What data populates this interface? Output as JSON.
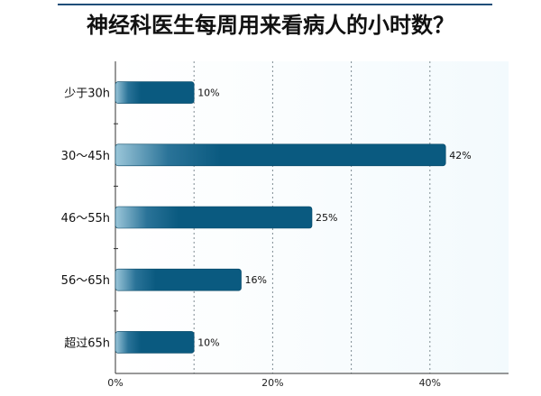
{
  "title": "神经科医生每周用来看病人的小时数？",
  "chart_data": {
    "type": "bar",
    "orientation": "horizontal",
    "title": "神经科医生每周用来看病人的小时数？",
    "categories": [
      "少于30h",
      "30～45h",
      "46～55h",
      "56～65h",
      "超过65h"
    ],
    "values": [
      10,
      42,
      25,
      16,
      10
    ],
    "value_labels": [
      "10%",
      "42%",
      "25%",
      "16%",
      "10%"
    ],
    "x_ticks": [
      0,
      20,
      40
    ],
    "x_tick_labels": [
      "0%",
      "20%",
      "40%"
    ],
    "xlim": [
      0,
      50
    ],
    "grid": true,
    "colors": {
      "bar_dark": "#0a5a80",
      "bar_light": "#9bc6d9",
      "plot_bg": "#f3fafd",
      "grid": "#7f8c93"
    }
  }
}
